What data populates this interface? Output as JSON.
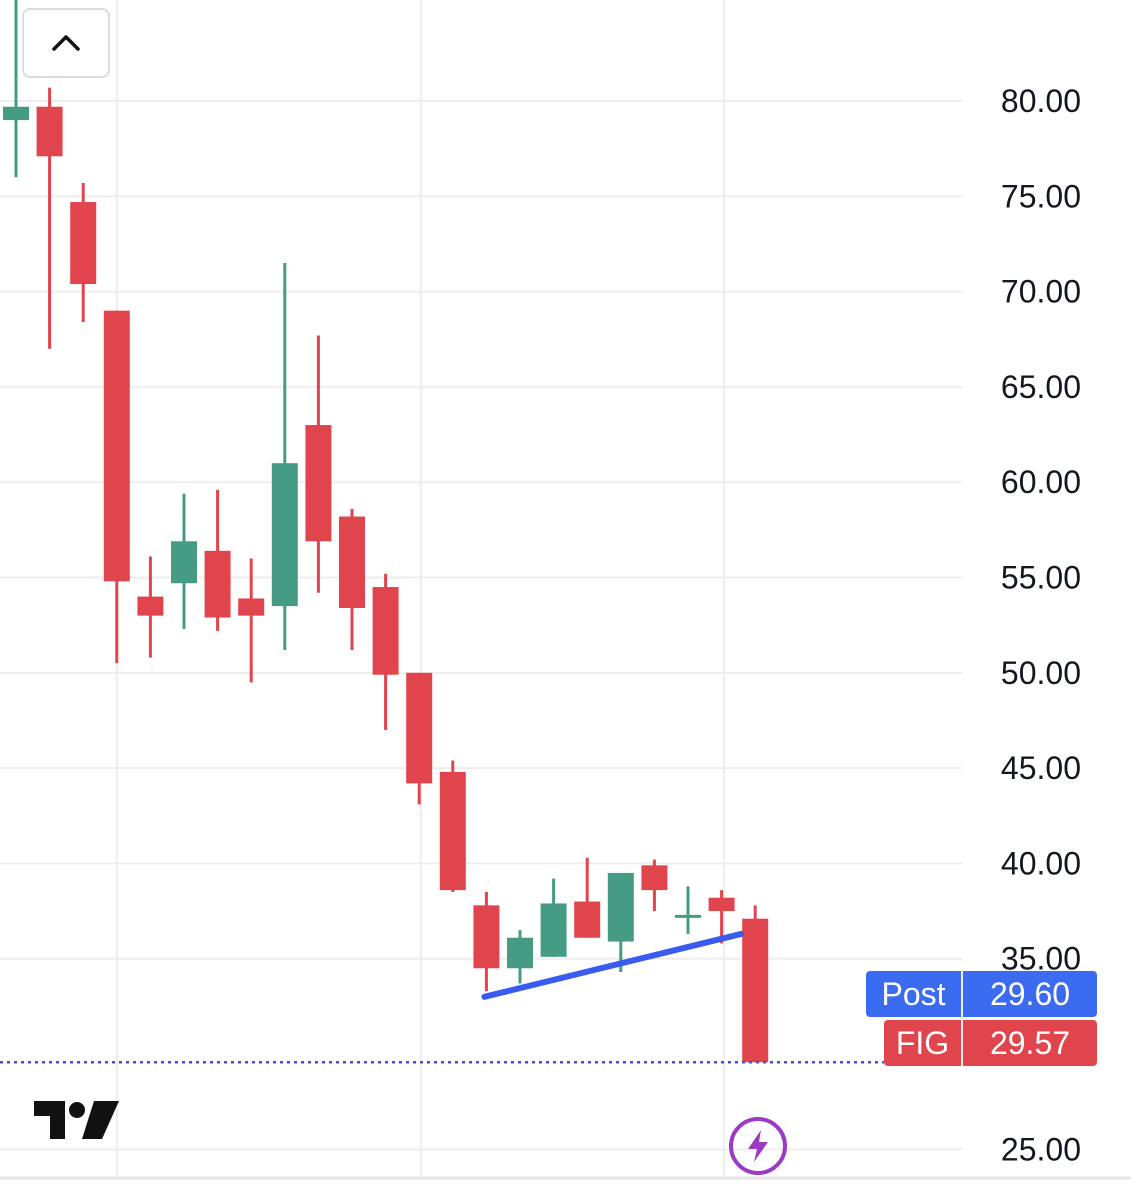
{
  "chart_data": {
    "type": "candlestick",
    "symbol": "FIG",
    "y_axis": {
      "ticks": [
        "80.00",
        "75.00",
        "70.00",
        "65.00",
        "60.00",
        "55.00",
        "50.00",
        "45.00",
        "40.00",
        "35.00",
        "25.00"
      ],
      "range": [
        23.6,
        85.3
      ]
    },
    "grid": true,
    "candles": [
      {
        "open": 79.0,
        "high": 85.6,
        "low": 76.0,
        "close": 79.7
      },
      {
        "open": 79.7,
        "high": 80.7,
        "low": 67.0,
        "close": 77.1
      },
      {
        "open": 74.7,
        "high": 75.7,
        "low": 68.4,
        "close": 70.4
      },
      {
        "open": 69.0,
        "high": 69.0,
        "low": 50.5,
        "close": 54.8
      },
      {
        "open": 54.0,
        "high": 56.1,
        "low": 50.8,
        "close": 53.0
      },
      {
        "open": 54.7,
        "high": 59.4,
        "low": 52.3,
        "close": 56.9
      },
      {
        "open": 56.4,
        "high": 59.6,
        "low": 52.2,
        "close": 52.9
      },
      {
        "open": 53.9,
        "high": 56.0,
        "low": 49.5,
        "close": 53.0
      },
      {
        "open": 53.5,
        "high": 71.5,
        "low": 51.2,
        "close": 61.0
      },
      {
        "open": 63.0,
        "high": 67.7,
        "low": 54.2,
        "close": 56.9
      },
      {
        "open": 58.2,
        "high": 58.6,
        "low": 51.2,
        "close": 53.4
      },
      {
        "open": 54.5,
        "high": 55.2,
        "low": 47.0,
        "close": 49.9
      },
      {
        "open": 50.0,
        "high": 50.0,
        "low": 43.1,
        "close": 44.2
      },
      {
        "open": 44.8,
        "high": 45.4,
        "low": 38.5,
        "close": 38.6
      },
      {
        "open": 37.8,
        "high": 38.5,
        "low": 33.3,
        "close": 34.5
      },
      {
        "open": 34.5,
        "high": 36.5,
        "low": 33.7,
        "close": 36.1
      },
      {
        "open": 35.1,
        "high": 39.2,
        "low": 35.1,
        "close": 37.9
      },
      {
        "open": 38.0,
        "high": 40.3,
        "low": 36.1,
        "close": 36.1
      },
      {
        "open": 35.9,
        "high": 39.5,
        "low": 34.3,
        "close": 39.5
      },
      {
        "open": 39.9,
        "high": 40.2,
        "low": 37.5,
        "close": 38.6
      },
      {
        "open": 37.3,
        "high": 38.8,
        "low": 36.3,
        "close": 37.3
      },
      {
        "open": 38.2,
        "high": 38.6,
        "low": 35.8,
        "close": 37.5
      },
      {
        "open": 37.1,
        "high": 37.8,
        "low": 29.57,
        "close": 29.57
      }
    ],
    "trendline": {
      "from": {
        "candle": 14,
        "price": 33.0
      },
      "to": {
        "candle": 22,
        "price": 36.3
      }
    },
    "last_price_line": 29.57,
    "colors": {
      "up": "#469C82",
      "down": "#E0444C",
      "trendline": "#3A5BF0",
      "last_line": "#3A56D9",
      "post_tag": "#3A6BF0",
      "grid": "#EEEEEE"
    }
  },
  "price_tags": {
    "post": {
      "label": "Post",
      "value": "29.60"
    },
    "last": {
      "label": "FIG",
      "value": "29.57"
    }
  },
  "icons": {
    "collapse": "chevron-up-icon",
    "logo": "tradingview-logo-icon",
    "alert": "lightning-bolt-icon"
  }
}
